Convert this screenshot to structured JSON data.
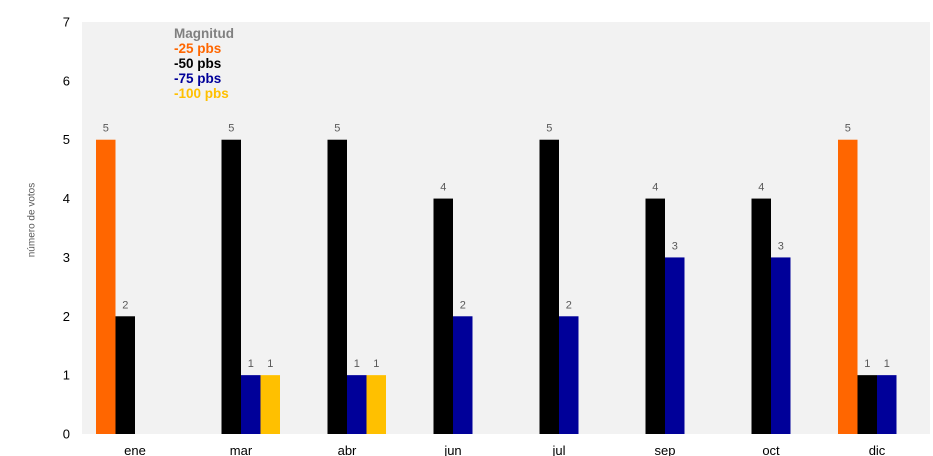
{
  "chart_data": {
    "type": "bar",
    "ylabel": "número de votos",
    "ylim": [
      0,
      7
    ],
    "yticks": [
      0,
      1,
      2,
      3,
      4,
      5,
      6,
      7
    ],
    "categories": [
      "ene",
      "mar",
      "abr",
      "jun",
      "jul",
      "sep",
      "oct",
      "dic"
    ],
    "legend_title": "Magnitud",
    "series": [
      {
        "name": "-25 pbs",
        "color": "#FF6600",
        "values": [
          5,
          0,
          0,
          0,
          0,
          0,
          0,
          5
        ]
      },
      {
        "name": "-50 pbs",
        "color": "#000000",
        "values": [
          2,
          5,
          5,
          4,
          5,
          4,
          4,
          1
        ]
      },
      {
        "name": "-75 pbs",
        "color": "#000099",
        "values": [
          0,
          1,
          1,
          2,
          2,
          3,
          3,
          1
        ]
      },
      {
        "name": "-100 pbs",
        "color": "#FFC000",
        "values": [
          0,
          1,
          1,
          0,
          0,
          0,
          0,
          0
        ]
      }
    ],
    "legend_title_color": "#808080",
    "grid": false,
    "legend_placement": "top-left"
  }
}
